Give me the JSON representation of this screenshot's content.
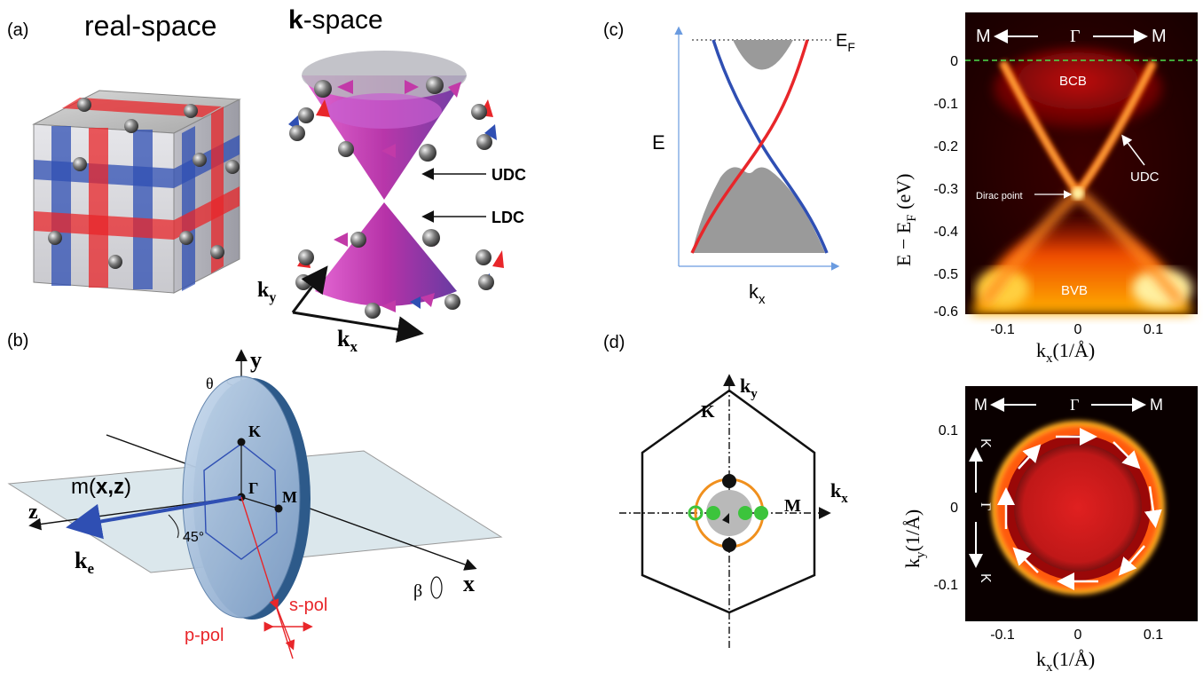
{
  "panels": {
    "a": {
      "letter": "(a)",
      "left_title": "real-space",
      "right_title_bold": "k",
      "right_title_rest": "-space",
      "udc": "UDC",
      "ldc": "LDC",
      "ky": "k",
      "ky_sub": "y",
      "kx": "k",
      "kx_sub": "x"
    },
    "b": {
      "letter": "(b)",
      "y_axis": "y",
      "x_axis": "x",
      "z_axis": "z",
      "theta": "θ",
      "beta": "β",
      "K": "K",
      "Gamma": "Γ",
      "M": "M",
      "mirror": "m(",
      "mirror_bold": "x,z",
      "mirror_end": ")",
      "angle": "45°",
      "ke": "k",
      "ke_sub": "e",
      "s_pol": "s-pol",
      "p_pol": "p-pol"
    },
    "c": {
      "letter": "(c)",
      "EF": "E",
      "EF_sub": "F",
      "E": "E",
      "kx": "k",
      "kx_sub": "x",
      "map_top_left": "M",
      "map_top_mid": "Γ",
      "map_top_right": "M",
      "bcb": "BCB",
      "bvb": "BVB",
      "udc": "UDC",
      "dirac": "Dirac point",
      "ylabel": "E − E",
      "ylabel_sub": "F",
      "ylabel_end": " (eV)",
      "xlabel": "k",
      "xlabel_sub": "x",
      "xlabel_end": "(1/Å)",
      "yticks": [
        "0",
        "-0.1",
        "-0.2",
        "-0.3",
        "-0.4",
        "-0.5",
        "-0.6"
      ],
      "xticks": [
        "-0.1",
        "0",
        "0.1"
      ]
    },
    "d": {
      "letter": "(d)",
      "ky": "k",
      "ky_sub": "y",
      "kx": "k",
      "kx_sub": "x",
      "K": "K",
      "M": "M",
      "map_top_left": "M",
      "map_top_mid": "Γ",
      "map_top_right": "M",
      "map_side_top": "K",
      "map_side_mid": "Γ",
      "map_side_bot": "K",
      "ylabel": "k",
      "ylabel_sub": "y",
      "ylabel_end": "(1/Å)",
      "xlabel": "k",
      "xlabel_sub": "x",
      "xlabel_end": "(1/Å)",
      "yticks": [
        "0.1",
        "0",
        "-0.1"
      ],
      "xticks": [
        "-0.1",
        "0",
        "0.1"
      ]
    }
  },
  "chart_data": [
    {
      "type": "heatmap",
      "panel": "c",
      "description_labels": [
        "BCB",
        "UDC",
        "Dirac point",
        "BVB"
      ],
      "xlabel": "kx(1/Å)",
      "ylabel": "E − EF (eV)",
      "xlim": [
        -0.15,
        0.15
      ],
      "ylim": [
        -0.6,
        0.05
      ],
      "dirac_point": {
        "kx": 0.0,
        "E": -0.32
      },
      "fermi_level": 0
    },
    {
      "type": "heatmap",
      "panel": "d",
      "xlabel": "kx(1/Å)",
      "ylabel": "ky(1/Å)",
      "xlim": [
        -0.15,
        0.15
      ],
      "ylim": [
        -0.15,
        0.15
      ],
      "fermi_ring_radius": 0.1
    }
  ],
  "colors": {
    "red": "#e8262a",
    "blue": "#2f4fb3",
    "magenta": "#c23aa8",
    "gray": "#9a9a9a",
    "map_dark": "#1a0000",
    "map_bright": "#fff6a0",
    "green": "#3cc43c",
    "orange": "#f0901e"
  }
}
